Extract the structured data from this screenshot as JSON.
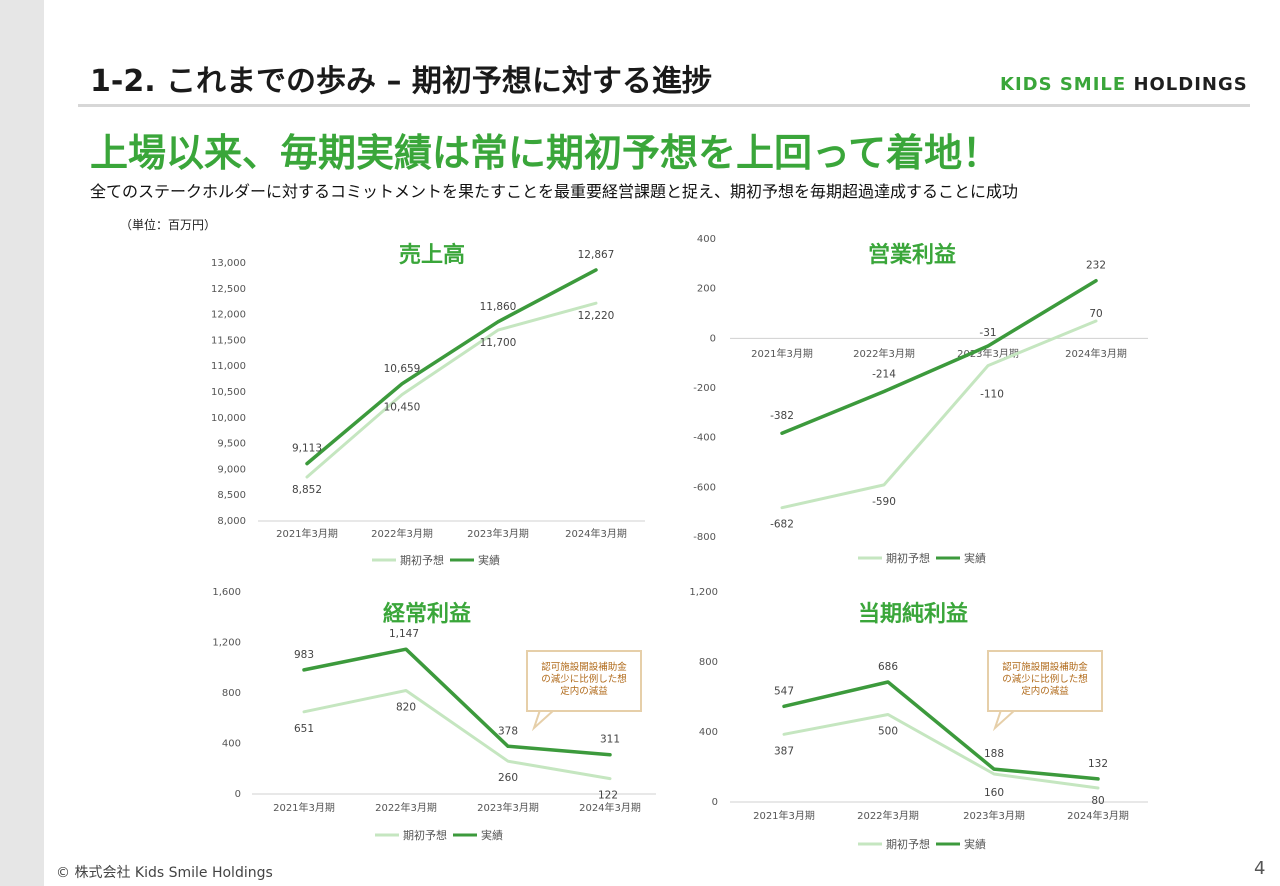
{
  "header": {
    "slide_title": "1-2. これまでの歩み – 期初予想に対する進捗",
    "logo_part1": "KIDS SMILE",
    "logo_part2": "HOLDINGS"
  },
  "headline": "上場以来、毎期実績は常に期初予想を上回って着地！",
  "subheadline": "全てのステークホルダーに対するコミットメントを果たすことを最重要経営課題と捉え、期初予想を毎期超過達成することに成功",
  "unit_label": "（単位：百万円）",
  "footer": "© 株式会社 Kids Smile Holdings",
  "page_number": "4",
  "colors": {
    "forecast": "#c5e6c0",
    "actual": "#3c9a3c",
    "title": "#3aa63a"
  },
  "chart_data": [
    {
      "type": "line",
      "title": "売上高",
      "categories": [
        "2021年3月期",
        "2022年3月期",
        "2023年3月期",
        "2024年3月期"
      ],
      "series": [
        {
          "name": "期初予想",
          "values": [
            8852,
            10450,
            11700,
            12220
          ],
          "labels": [
            "8,852",
            "10,450",
            "11,700",
            "12,220"
          ]
        },
        {
          "name": "実績",
          "values": [
            9113,
            10659,
            11860,
            12867
          ],
          "labels": [
            "9,113",
            "10,659",
            "11,860",
            "12,867"
          ]
        }
      ],
      "ylim": [
        8000,
        13000
      ],
      "yticks": [
        "8,000",
        "8,500",
        "9,000",
        "9,500",
        "10,000",
        "10,500",
        "11,000",
        "11,500",
        "12,000",
        "12,500",
        "13,000"
      ],
      "legend": "bottom",
      "callout": ""
    },
    {
      "type": "line",
      "title": "営業利益",
      "categories": [
        "2021年3月期",
        "2022年3月期",
        "2023年3月期",
        "2024年3月期"
      ],
      "series": [
        {
          "name": "期初予想",
          "values": [
            -682,
            -590,
            -110,
            70
          ],
          "labels": [
            "-682",
            "-590",
            "-110",
            "70"
          ]
        },
        {
          "name": "実績",
          "values": [
            -382,
            -214,
            -31,
            232
          ],
          "labels": [
            "-382",
            "-214",
            "-31",
            "232"
          ]
        }
      ],
      "ylim": [
        -800,
        400
      ],
      "yticks": [
        "-800",
        "-600",
        "-400",
        "-200",
        "0",
        "200",
        "400"
      ],
      "legend": "bottom",
      "callout": ""
    },
    {
      "type": "line",
      "title": "経常利益",
      "categories": [
        "2021年3月期",
        "2022年3月期",
        "2023年3月期",
        "2024年3月期"
      ],
      "series": [
        {
          "name": "期初予想",
          "values": [
            651,
            820,
            260,
            122
          ],
          "labels": [
            "651",
            "820",
            "260",
            "122"
          ]
        },
        {
          "name": "実績",
          "values": [
            983,
            1147,
            378,
            311
          ],
          "labels": [
            "983",
            "1,147",
            "378",
            "311"
          ]
        }
      ],
      "ylim": [
        0,
        1600
      ],
      "yticks": [
        "0",
        "400",
        "800",
        "1,200",
        "1,600"
      ],
      "legend": "bottom",
      "callout": "認可施設開設補助金\nの減少に比例した想\n定内の減益"
    },
    {
      "type": "line",
      "title": "当期純利益",
      "categories": [
        "2021年3月期",
        "2022年3月期",
        "2023年3月期",
        "2024年3月期"
      ],
      "series": [
        {
          "name": "期初予想",
          "values": [
            387,
            500,
            160,
            80
          ],
          "labels": [
            "387",
            "500",
            "160",
            "80"
          ]
        },
        {
          "name": "実績",
          "values": [
            547,
            686,
            188,
            132
          ],
          "labels": [
            "547",
            "686",
            "188",
            "132"
          ]
        }
      ],
      "ylim": [
        0,
        1200
      ],
      "yticks": [
        "0",
        "400",
        "800",
        "1,200"
      ],
      "legend": "bottom",
      "callout": "認可施設開設補助金\nの減少に比例した想\n定内の減益"
    }
  ]
}
